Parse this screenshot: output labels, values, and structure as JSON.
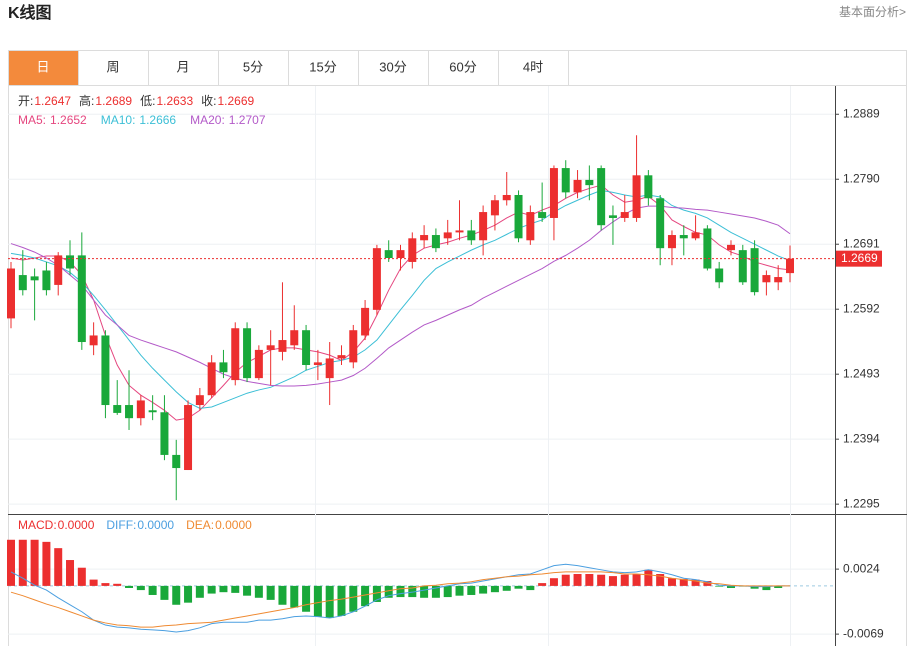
{
  "header": {
    "title": "K线图",
    "link": "基本面分析>"
  },
  "tabs": {
    "items": [
      "日",
      "周",
      "月",
      "5分",
      "15分",
      "30分",
      "60分",
      "4时"
    ],
    "active": 0
  },
  "chart_data": [
    {
      "type": "candlestick",
      "up_color": "#ec2f2f",
      "down_color": "#19a83a",
      "price_line": true,
      "readout_labels": [
        "开:",
        "高:",
        "低:",
        "收:"
      ],
      "open": [
        1.2578,
        1.2644,
        1.2642,
        1.2651,
        1.2629,
        1.2674,
        1.2674,
        1.2537,
        1.2552,
        1.2446,
        1.2446,
        1.2426,
        1.2438,
        1.2435,
        1.237,
        1.2347,
        1.2446,
        1.2461,
        1.2511,
        1.2484,
        1.2563,
        1.2487,
        1.253,
        1.2527,
        1.2537,
        1.256,
        1.2507,
        1.2487,
        1.2517,
        1.2511,
        1.2552,
        1.2591,
        1.2682,
        1.267,
        1.2664,
        1.2697,
        1.2705,
        1.27,
        1.2709,
        1.2712,
        1.2697,
        1.2735,
        1.2758,
        1.2766,
        1.2697,
        1.274,
        1.2731,
        1.2807,
        1.277,
        1.2789,
        1.2807,
        1.2735,
        1.2731,
        1.2731,
        1.2796,
        1.2761,
        1.2685,
        1.2705,
        1.27,
        1.2715,
        1.2654,
        1.2682,
        1.2682,
        1.2685,
        1.2633,
        1.2633,
        1.2647
      ],
      "high": [
        1.2664,
        1.2682,
        1.2654,
        1.2664,
        1.2679,
        1.2697,
        1.2709,
        1.2572,
        1.256,
        1.2484,
        1.2499,
        1.2461,
        1.2461,
        1.2461,
        1.2393,
        1.2453,
        1.2472,
        1.2522,
        1.253,
        1.2572,
        1.2572,
        1.2537,
        1.256,
        1.2633,
        1.2598,
        1.2568,
        1.253,
        1.2542,
        1.2537,
        1.2568,
        1.2606,
        1.269,
        1.2697,
        1.269,
        1.2709,
        1.272,
        1.2715,
        1.2728,
        1.2758,
        1.2728,
        1.275,
        1.2766,
        1.2801,
        1.2773,
        1.275,
        1.2785,
        1.2811,
        1.2819,
        1.2804,
        1.2811,
        1.2811,
        1.275,
        1.2766,
        1.2857,
        1.2804,
        1.2766,
        1.2712,
        1.272,
        1.2735,
        1.272,
        1.2664,
        1.2697,
        1.269,
        1.2697,
        1.2651,
        1.2659,
        1.2689
      ],
      "low": [
        1.2563,
        1.2613,
        1.2575,
        1.2613,
        1.2613,
        1.2644,
        1.253,
        1.2522,
        1.2426,
        1.2431,
        1.2408,
        1.2415,
        1.2423,
        1.2362,
        1.2301,
        1.2347,
        1.2438,
        1.2457,
        1.2487,
        1.2476,
        1.2481,
        1.2484,
        1.2476,
        1.2514,
        1.253,
        1.2499,
        1.2484,
        1.2446,
        1.2507,
        1.2502,
        1.2545,
        1.2583,
        1.2664,
        1.2651,
        1.2654,
        1.2685,
        1.2679,
        1.269,
        1.2697,
        1.269,
        1.2674,
        1.2712,
        1.275,
        1.2694,
        1.269,
        1.2725,
        1.2697,
        1.2761,
        1.2761,
        1.2758,
        1.2712,
        1.269,
        1.2725,
        1.2725,
        1.275,
        1.2659,
        1.2659,
        1.2674,
        1.2697,
        1.2651,
        1.2624,
        1.2674,
        1.2629,
        1.2613,
        1.2613,
        1.2621,
        1.2633
      ],
      "close": [
        1.2654,
        1.2621,
        1.2636,
        1.2621,
        1.2674,
        1.2654,
        1.2542,
        1.2552,
        1.2446,
        1.2434,
        1.2426,
        1.2453,
        1.2435,
        1.237,
        1.235,
        1.2446,
        1.2461,
        1.2511,
        1.2496,
        1.2563,
        1.2487,
        1.253,
        1.2537,
        1.2545,
        1.256,
        1.2507,
        1.2511,
        1.2517,
        1.2522,
        1.256,
        1.2594,
        1.2685,
        1.267,
        1.2682,
        1.27,
        1.2705,
        1.2685,
        1.2709,
        1.2712,
        1.2697,
        1.274,
        1.2758,
        1.2766,
        1.27,
        1.274,
        1.2731,
        1.2807,
        1.277,
        1.2789,
        1.2781,
        1.272,
        1.2731,
        1.274,
        1.2796,
        1.2761,
        1.2685,
        1.2705,
        1.27,
        1.2709,
        1.2654,
        1.2633,
        1.269,
        1.2633,
        1.2618,
        1.2644,
        1.2641,
        1.2669
      ],
      "ma": [
        {
          "name": "MA5:",
          "color": "#e5467f",
          "values": [
            1.267,
            1.2667,
            1.267,
            1.2673,
            1.2673,
            1.2664,
            1.2644,
            1.2606,
            1.2552,
            1.2507,
            1.2476,
            1.2461,
            1.245,
            1.2438,
            1.2423,
            1.2426,
            1.2438,
            1.2457,
            1.2476,
            1.2496,
            1.2511,
            1.252,
            1.253,
            1.2533,
            1.2533,
            1.253,
            1.2527,
            1.2522,
            1.2514,
            1.2527,
            1.2548,
            1.2583,
            1.2621,
            1.2654,
            1.2674,
            1.2685,
            1.269,
            1.2694,
            1.27,
            1.2705,
            1.2712,
            1.272,
            1.2731,
            1.274,
            1.2735,
            1.2743,
            1.275,
            1.2761,
            1.277,
            1.2776,
            1.2781,
            1.2766,
            1.2755,
            1.2758,
            1.2764,
            1.275,
            1.2728,
            1.2718,
            1.2709,
            1.2705,
            1.269,
            1.2679,
            1.2673,
            1.2664,
            1.2659,
            1.2654,
            1.2652
          ]
        },
        {
          "name": "MA10:",
          "color": "#3cbfd6",
          "values": [
            1.2677,
            1.2674,
            1.267,
            1.2664,
            1.2658,
            1.2648,
            1.2633,
            1.2613,
            1.2591,
            1.2568,
            1.2545,
            1.2522,
            1.2502,
            1.2484,
            1.2466,
            1.245,
            1.2441,
            1.2443,
            1.245,
            1.2457,
            1.2464,
            1.2469,
            1.2473,
            1.2481,
            1.2489,
            1.2499,
            1.2505,
            1.2511,
            1.2514,
            1.2519,
            1.253,
            1.2545,
            1.2568,
            1.2591,
            1.2613,
            1.2636,
            1.2654,
            1.2664,
            1.2673,
            1.2682,
            1.269,
            1.2697,
            1.2706,
            1.2715,
            1.2722,
            1.2728,
            1.274,
            1.275,
            1.2758,
            1.2766,
            1.2773,
            1.277,
            1.2766,
            1.2763,
            1.2766,
            1.2763,
            1.275,
            1.2743,
            1.2738,
            1.2731,
            1.272,
            1.2709,
            1.27,
            1.2691,
            1.2682,
            1.2673,
            1.2666
          ]
        },
        {
          "name": "MA20:",
          "color": "#b35ac8",
          "values": [
            1.2692,
            1.2686,
            1.2679,
            1.267,
            1.2659,
            1.2644,
            1.2629,
            1.2606,
            1.2583,
            1.2568,
            1.2552,
            1.2545,
            1.2539,
            1.2533,
            1.2527,
            1.2519,
            1.2511,
            1.2502,
            1.2493,
            1.2487,
            1.2482,
            1.2479,
            1.2476,
            1.2475,
            1.2475,
            1.2476,
            1.2478,
            1.2481,
            1.2484,
            1.2491,
            1.2502,
            1.2517,
            1.2533,
            1.2545,
            1.2557,
            1.2568,
            1.2575,
            1.2583,
            1.2591,
            1.2598,
            1.2609,
            1.2618,
            1.2627,
            1.2636,
            1.2645,
            1.2654,
            1.2665,
            1.2674,
            1.2685,
            1.2697,
            1.2712,
            1.2725,
            1.2737,
            1.2746,
            1.2749,
            1.2749,
            1.2747,
            1.2746,
            1.2744,
            1.2743,
            1.274,
            1.2737,
            1.2734,
            1.2731,
            1.2726,
            1.272,
            1.2707
          ]
        }
      ],
      "ylim": [
        1.228,
        1.2929
      ],
      "yticks": [
        1.2295,
        1.2394,
        1.2493,
        1.2592,
        1.2691,
        {
          "value": 1.279,
          "label": "1.2790"
        },
        1.2889
      ],
      "grid": true
    },
    {
      "type": "macd",
      "up_color": "#ec2f2f",
      "down_color": "#19a83a",
      "histogram": {
        "name": "MACD:",
        "color": "#ec2f2f",
        "readout": {
          "value": 0,
          "label": "0.0000"
        },
        "values": [
          0.0066,
          0.0066,
          0.0066,
          0.0063,
          0.0054,
          0.0037,
          0.0026,
          0.0009,
          0.0004,
          0.0003,
          -0.0003,
          -0.0006,
          -0.0013,
          -0.002,
          -0.0027,
          -0.0024,
          -0.0017,
          -0.0011,
          -0.0009,
          -0.001,
          -0.0014,
          -0.0017,
          -0.002,
          -0.0027,
          -0.0031,
          -0.0037,
          -0.0044,
          -0.0046,
          -0.0043,
          -0.0037,
          -0.0029,
          -0.0023,
          -0.0017,
          -0.0016,
          -0.0016,
          -0.0017,
          -0.0017,
          -0.0016,
          -0.0014,
          -0.0013,
          -0.0011,
          -0.0009,
          -0.0007,
          -0.0004,
          -0.0006,
          0.0004,
          0.0011,
          0.0016,
          0.0017,
          0.0017,
          0.0016,
          0.0014,
          0.0016,
          0.0017,
          0.0023,
          0.0017,
          0.0011,
          0.001,
          0.0009,
          0.0007,
          -0.0001,
          -0.0003,
          -0.0001,
          -0.0004,
          -0.0006,
          -0.0003,
          0
        ]
      },
      "series": [
        {
          "name": "DIFF:",
          "color": "#4b9fe0",
          "readout": {
            "value": 0,
            "label": "0.0000"
          },
          "values": [
            0.002,
            0.0011,
            0.0001,
            -0.0006,
            -0.0017,
            -0.0027,
            -0.0037,
            -0.0049,
            -0.0056,
            -0.0059,
            -0.006,
            -0.0062,
            -0.0063,
            -0.0064,
            -0.0066,
            -0.0064,
            -0.006,
            -0.0054,
            -0.0052,
            -0.0052,
            -0.0052,
            -0.0049,
            -0.0049,
            -0.0047,
            -0.0044,
            -0.0043,
            -0.0044,
            -0.0046,
            -0.0043,
            -0.0037,
            -0.0029,
            -0.002,
            -0.0014,
            -0.0011,
            -0.0009,
            -0.0006,
            -0.0003,
            0,
            0.0003,
            0.0004,
            0.0007,
            0.001,
            0.0013,
            0.0016,
            0.0017,
            0.0023,
            0.0029,
            0.0031,
            0.0029,
            0.0026,
            0.0023,
            0.002,
            0.0019,
            0.002,
            0.0023,
            0.002,
            0.0016,
            0.0011,
            0.0009,
            0.0006,
            0.0001,
            0,
            0,
            -0.0001,
            -0.0001,
            0,
            0
          ]
        },
        {
          "name": "DEA:",
          "color": "#ef8a32",
          "readout": {
            "value": 0,
            "label": "0.0000"
          },
          "values": [
            -0.0009,
            -0.0014,
            -0.002,
            -0.0026,
            -0.0031,
            -0.0037,
            -0.0043,
            -0.0049,
            -0.0053,
            -0.0056,
            -0.0057,
            -0.0059,
            -0.0059,
            -0.0057,
            -0.0056,
            -0.0054,
            -0.0053,
            -0.0052,
            -0.0049,
            -0.0046,
            -0.0043,
            -0.004,
            -0.0037,
            -0.0034,
            -0.0031,
            -0.0027,
            -0.0024,
            -0.0021,
            -0.0019,
            -0.0016,
            -0.0013,
            -0.001,
            -0.0007,
            -0.0004,
            -0.0003,
            0,
            0.0001,
            0.0003,
            0.0004,
            0.0006,
            0.0009,
            0.0011,
            0.0013,
            0.0014,
            0.0016,
            0.0017,
            0.0019,
            0.002,
            0.002,
            0.002,
            0.002,
            0.0019,
            0.0017,
            0.0017,
            0.0016,
            0.0014,
            0.0011,
            0.0009,
            0.0007,
            0.0004,
            0.0003,
            0.0001,
            0,
            0,
            0,
            0,
            0
          ]
        }
      ],
      "ylim": [
        -0.0086,
        0.01
      ],
      "yticks": [
        -0.0069,
        0.0024
      ],
      "grid": true
    }
  ]
}
